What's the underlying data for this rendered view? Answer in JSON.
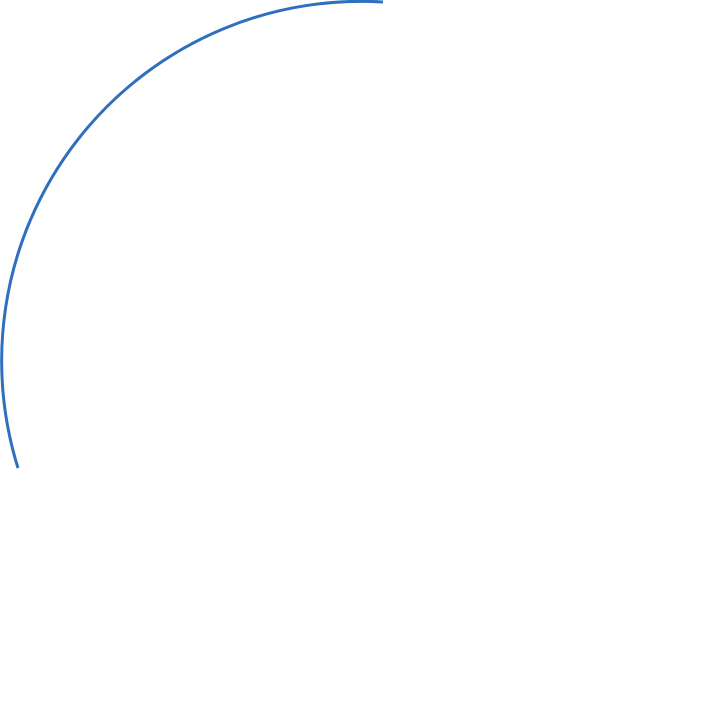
{
  "shape": {
    "type": "arc",
    "stroke_color": "#2E6FBF",
    "background_color": "#FFFFFF"
  }
}
